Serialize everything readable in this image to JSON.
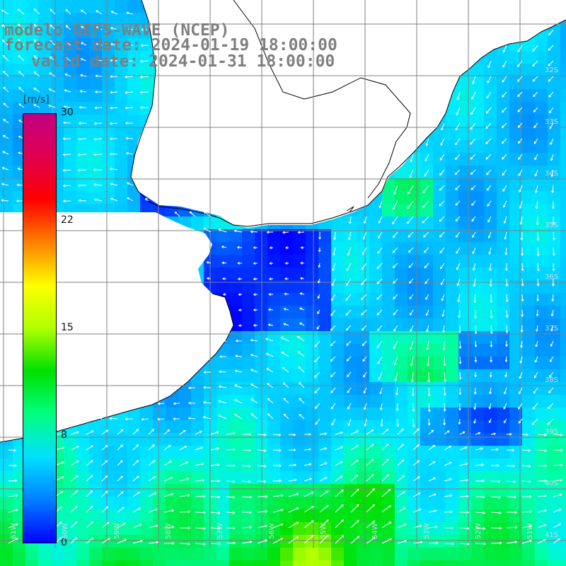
{
  "header": {
    "model": "modelo GEFS-WAVE (NCEP)",
    "forecast": "forecast date: 2024-01-19 18:00:00",
    "valid": "valid date: 2024-01-31 18:00:00"
  },
  "colorbar": {
    "unit": "[m/s]",
    "ticks": [
      "30",
      "22",
      "15",
      "8",
      "0"
    ],
    "gradient_colors": [
      "#0000ff",
      "#0080ff",
      "#00e0ff",
      "#00ff80",
      "#00e000",
      "#b0ff00",
      "#ffff00",
      "#ff8000",
      "#ff0000",
      "#e00050",
      "#c00080"
    ]
  },
  "axes": {
    "lat_labels": [
      "32S",
      "33S",
      "34S",
      "35S",
      "36S",
      "37S",
      "38S",
      "39S",
      "40S",
      "41S"
    ],
    "lon_labels": [
      "61W",
      "60W",
      "59W",
      "58W",
      "57W",
      "56W",
      "55W",
      "54W",
      "53W",
      "52W",
      "51W"
    ]
  },
  "map": {
    "land_color": "#ffffff",
    "coast_color": "#000000",
    "grid_color": "#808080",
    "arrow_color": "#ffffff"
  }
}
